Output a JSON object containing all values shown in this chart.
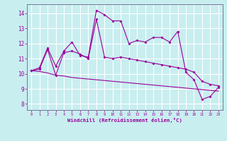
{
  "xlabel": "Windchill (Refroidissement éolien,°C)",
  "bg_color": "#c8eef0",
  "line_color": "#990099",
  "grid_color": "#ffffff",
  "x_ticks": [
    0,
    1,
    2,
    3,
    4,
    5,
    6,
    7,
    8,
    9,
    10,
    11,
    12,
    13,
    14,
    15,
    16,
    17,
    18,
    19,
    20,
    21,
    22,
    23
  ],
  "y_ticks": [
    8,
    9,
    10,
    11,
    12,
    13,
    14
  ],
  "xlim": [
    -0.5,
    23.5
  ],
  "ylim": [
    7.6,
    14.6
  ],
  "series1_x": [
    0,
    1,
    2,
    3,
    4,
    5,
    6,
    7,
    8,
    9,
    10,
    11,
    12,
    13,
    14,
    15,
    16,
    17,
    18,
    19,
    20,
    21,
    22,
    23
  ],
  "series1_y": [
    10.2,
    10.4,
    11.7,
    10.5,
    11.5,
    12.1,
    11.2,
    11.1,
    14.2,
    13.9,
    13.5,
    13.5,
    12.0,
    12.2,
    12.1,
    12.4,
    12.4,
    12.1,
    12.8,
    10.1,
    9.6,
    8.3,
    8.5,
    9.1
  ],
  "series2_x": [
    0,
    1,
    2,
    3,
    4,
    5,
    6,
    7,
    8,
    9,
    10,
    11,
    12,
    13,
    14,
    15,
    16,
    17,
    18,
    19,
    20,
    21,
    22,
    23
  ],
  "series2_y": [
    10.2,
    10.3,
    11.6,
    9.9,
    11.4,
    11.5,
    11.3,
    11.0,
    13.6,
    11.1,
    11.0,
    11.1,
    11.0,
    10.9,
    10.8,
    10.7,
    10.6,
    10.5,
    10.4,
    10.3,
    10.1,
    9.5,
    9.3,
    9.2
  ],
  "series3_x": [
    0,
    1,
    2,
    3,
    4,
    5,
    6,
    7,
    8,
    9,
    10,
    11,
    12,
    13,
    14,
    15,
    16,
    17,
    18,
    19,
    20,
    21,
    22,
    23
  ],
  "series3_y": [
    10.2,
    10.15,
    10.05,
    9.9,
    9.85,
    9.75,
    9.7,
    9.65,
    9.6,
    9.55,
    9.5,
    9.45,
    9.4,
    9.35,
    9.3,
    9.25,
    9.2,
    9.15,
    9.1,
    9.05,
    9.0,
    8.95,
    8.9,
    8.85
  ]
}
